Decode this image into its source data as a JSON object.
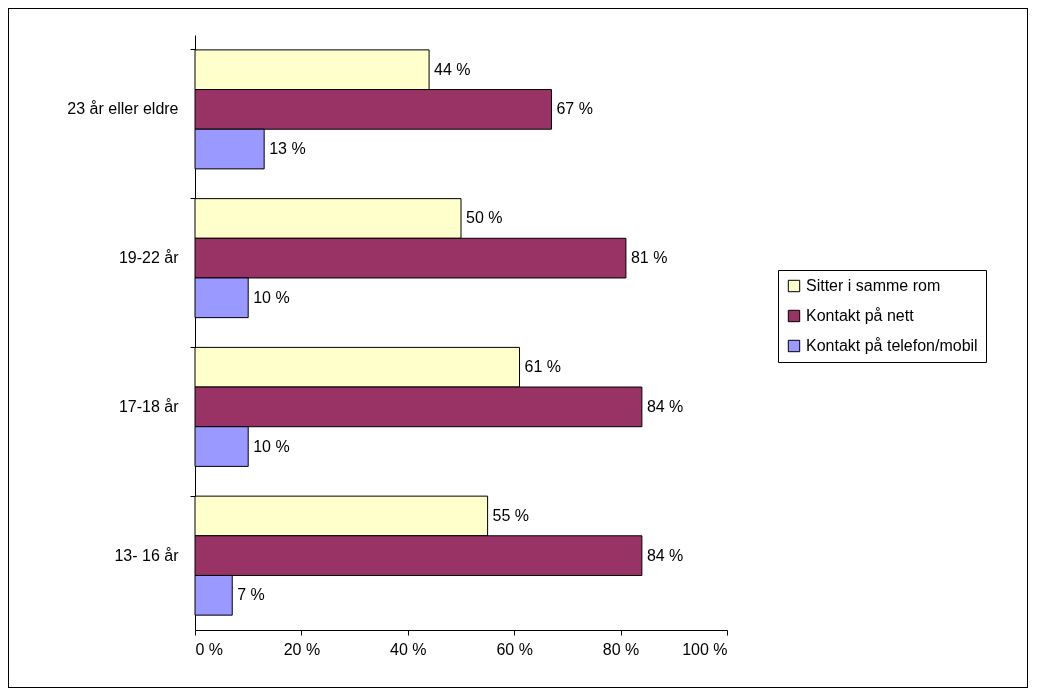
{
  "chart_data": {
    "type": "bar",
    "orientation": "horizontal",
    "categories": [
      "23 år eller eldre",
      "19-22 år",
      "17-18 år",
      "13- 16 år"
    ],
    "series": [
      {
        "name": "Sitter i samme rom",
        "color": "#ffffcc",
        "values": [
          44,
          50,
          61,
          55
        ],
        "value_labels": [
          "44 %",
          "50 %",
          "61 %",
          "55 %"
        ]
      },
      {
        "name": "Kontakt på nett",
        "color": "#993366",
        "values": [
          67,
          81,
          84,
          84
        ],
        "value_labels": [
          "67 %",
          "81 %",
          "84 %",
          "84 %"
        ]
      },
      {
        "name": "Kontakt på telefon/mobil",
        "color": "#9999ff",
        "values": [
          13,
          10,
          10,
          7
        ],
        "value_labels": [
          "13 %",
          "10 %",
          "10 %",
          "7 %"
        ]
      }
    ],
    "xlim": [
      0,
      100
    ],
    "xticks": [
      {
        "value": 0,
        "label": "0 %"
      },
      {
        "value": 20,
        "label": "20 %"
      },
      {
        "value": 40,
        "label": "40 %"
      },
      {
        "value": 60,
        "label": "60 %"
      },
      {
        "value": 80,
        "label": "80 %"
      },
      {
        "value": 100,
        "label": "100 %"
      }
    ],
    "grid": false,
    "legend": "right"
  }
}
